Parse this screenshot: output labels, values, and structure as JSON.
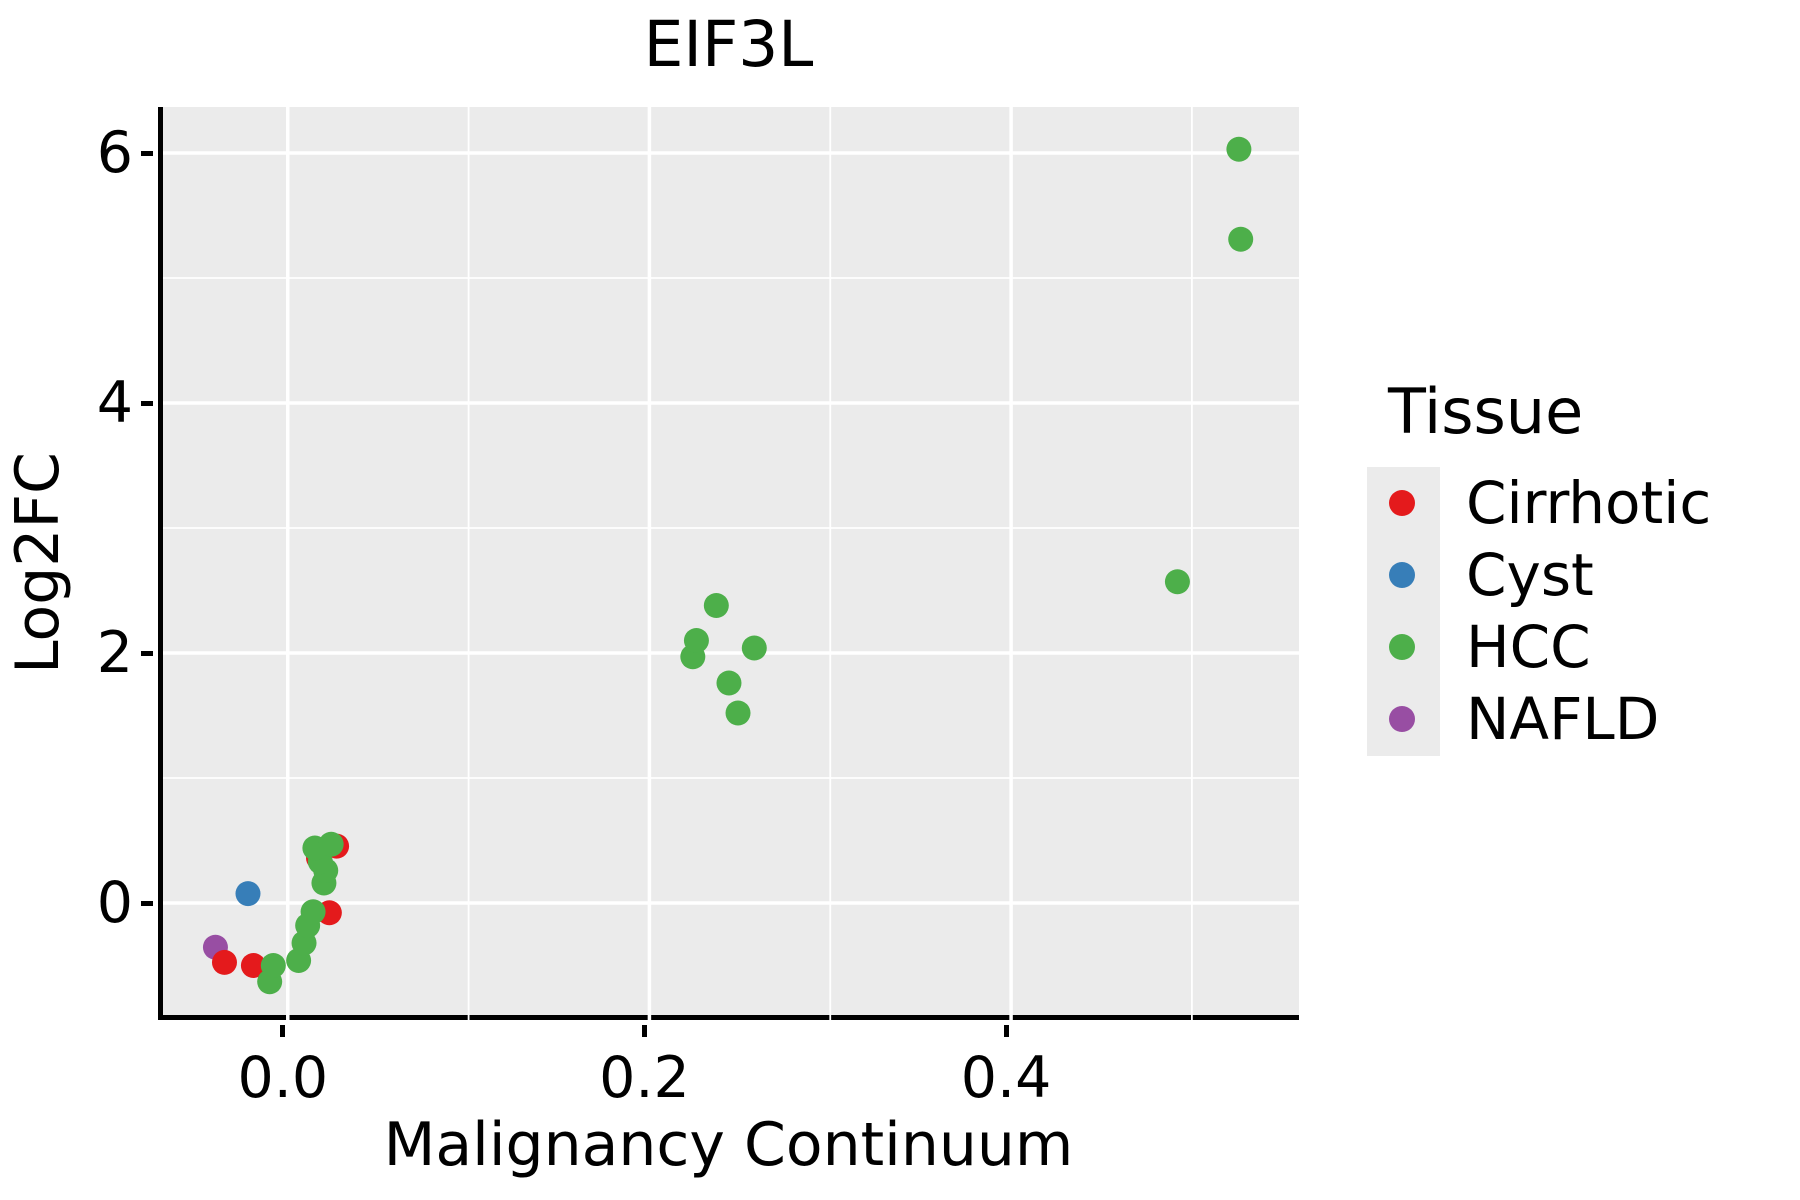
{
  "chart": {
    "title": "EIF3L",
    "x_axis": {
      "label": "Malignancy Continuum",
      "ticks": [
        {
          "value": 0.0,
          "label": "0.0"
        },
        {
          "value": 0.2,
          "label": "0.2"
        },
        {
          "value": 0.4,
          "label": "0.4"
        }
      ],
      "minor_ticks": [
        0.1,
        0.3,
        0.5
      ],
      "range": [
        -0.069,
        0.562
      ]
    },
    "y_axis": {
      "label": "Log2FC",
      "ticks": [
        {
          "value": 0,
          "label": "0"
        },
        {
          "value": 2,
          "label": "2"
        },
        {
          "value": 4,
          "label": "4"
        },
        {
          "value": 6,
          "label": "6"
        }
      ],
      "minor_ticks": [
        1,
        3,
        5
      ],
      "range": [
        -0.936,
        6.368
      ]
    },
    "legend": {
      "title": "Tissue",
      "items": [
        {
          "label": "Cirrhotic",
          "color": "#E41A1C"
        },
        {
          "label": "Cyst",
          "color": "#377EB8"
        },
        {
          "label": "HCC",
          "color": "#4DAF4A"
        },
        {
          "label": "NAFLD",
          "color": "#984EA3"
        }
      ]
    }
  },
  "chart_data": {
    "type": "scatter",
    "title": "EIF3L",
    "xlabel": "Malignancy Continuum",
    "ylabel": "Log2FC",
    "xlim": [
      -0.069,
      0.562
    ],
    "ylim": [
      -0.936,
      6.368
    ],
    "grid": true,
    "legend_position": "right",
    "point_radius_px": 12.5,
    "series": [
      {
        "name": "NAFLD",
        "color": "#984EA3",
        "z": 0,
        "points": [
          [
            -0.04,
            -0.354
          ]
        ]
      },
      {
        "name": "Cirrhotic",
        "color": "#E41A1C",
        "z": 1,
        "points": [
          [
            -0.035,
            -0.475
          ],
          [
            -0.019,
            -0.5
          ],
          [
            0.023,
            -0.078
          ],
          [
            0.017,
            0.36
          ],
          [
            0.027,
            0.455
          ]
        ]
      },
      {
        "name": "Cyst",
        "color": "#377EB8",
        "z": 2,
        "points": [
          [
            -0.022,
            0.075
          ]
        ]
      },
      {
        "name": "HCC",
        "color": "#4DAF4A",
        "z": 3,
        "points": [
          [
            -0.01,
            -0.63
          ],
          [
            -0.008,
            -0.5
          ],
          [
            0.006,
            -0.46
          ],
          [
            0.009,
            -0.32
          ],
          [
            0.011,
            -0.18
          ],
          [
            0.014,
            -0.07
          ],
          [
            0.02,
            0.16
          ],
          [
            0.021,
            0.26
          ],
          [
            0.018,
            0.33
          ],
          [
            0.015,
            0.44
          ],
          [
            0.024,
            0.47
          ],
          [
            0.224,
            1.97
          ],
          [
            0.226,
            2.1
          ],
          [
            0.237,
            2.38
          ],
          [
            0.244,
            1.76
          ],
          [
            0.249,
            1.52
          ],
          [
            0.258,
            2.04
          ],
          [
            0.492,
            2.57
          ],
          [
            0.526,
            6.03
          ],
          [
            0.527,
            5.31
          ]
        ]
      }
    ]
  },
  "style": {
    "panel_bg": "#EBEBEB",
    "grid_major_color": "#FFFFFF",
    "grid_minor_color": "#FFFFFF",
    "axis_color": "#000000",
    "text_color": "#000000"
  }
}
